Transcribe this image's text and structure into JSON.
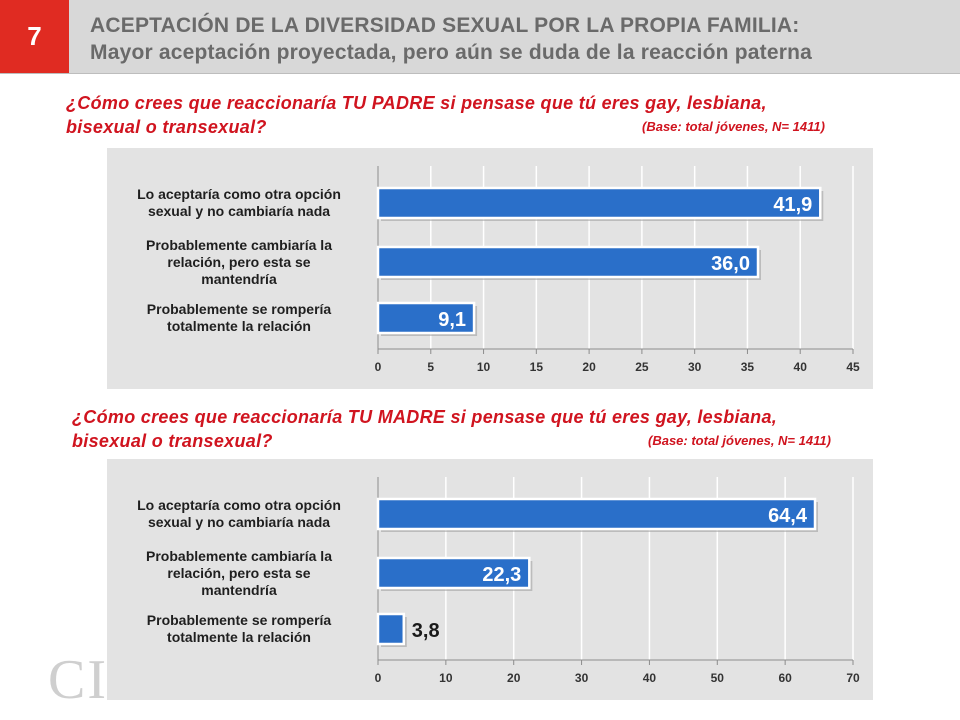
{
  "slide_number": "7",
  "title_line1": "ACEPTACIÓN DE LA DIVERSIDAD SEXUAL POR LA PROPIA FAMILIA:",
  "title_line2": "Mayor aceptación proyectada, pero aún se duda de la reacción paterna",
  "logo_text": "CIM",
  "colors": {
    "accent": "#e02b22",
    "bar": "#2a6fc9",
    "question": "#d0141f",
    "panel": "#e3e3e3"
  },
  "charts": [
    {
      "question_line1": "¿Cómo crees que reaccionaría TU PADRE si pensase que tú eres gay, lesbiana,",
      "question_line2": "bisexual o transexual?",
      "base": "(Base: total jóvenes, N= 1411)"
    },
    {
      "question_line1": "¿Cómo crees que reaccionaría TU MADRE si pensase que tú eres gay, lesbiana,",
      "question_line2": "bisexual o transexual?",
      "base": "(Base: total jóvenes, N= 1411)"
    }
  ],
  "chart_data": [
    {
      "type": "bar",
      "orientation": "horizontal",
      "title": "¿Cómo crees que reaccionaría TU PADRE si pensase que tú eres gay, lesbiana, bisexual o transexual?",
      "categories": [
        "Lo aceptaría como otra opción sexual y no cambiaría nada",
        "Probablemente cambiaría la relación, pero esta se mantendría",
        "Probablemente se rompería totalmente la relación"
      ],
      "category_lines": [
        [
          "Lo aceptaría como otra opción",
          "sexual y no cambiaría nada"
        ],
        [
          "Probablemente cambiaría la",
          "relación, pero esta se",
          "mantendría"
        ],
        [
          "Probablemente se rompería",
          "totalmente la relación"
        ]
      ],
      "values": [
        41.9,
        36.0,
        9.1
      ],
      "value_labels": [
        "41,9",
        "36,0",
        "9,1"
      ],
      "xlim": [
        0,
        45
      ],
      "ticks": [
        0,
        5,
        10,
        15,
        20,
        25,
        30,
        35,
        40,
        45
      ],
      "tick_labels": [
        "0",
        "5",
        "10",
        "15",
        "20",
        "25",
        "30",
        "35",
        "40",
        "45"
      ],
      "grid": true
    },
    {
      "type": "bar",
      "orientation": "horizontal",
      "title": "¿Cómo crees que reaccionaría TU MADRE si pensase que tú eres gay, lesbiana, bisexual o transexual?",
      "categories": [
        "Lo aceptaría como otra opción sexual y no cambiaría nada",
        "Probablemente cambiaría la relación, pero esta se mantendría",
        "Probablemente se rompería totalmente la relación"
      ],
      "category_lines": [
        [
          "Lo aceptaría como otra opción",
          "sexual y no cambiaría nada"
        ],
        [
          "Probablemente cambiaría la",
          "relación, pero esta se",
          "mantendría"
        ],
        [
          "Probablemente se rompería",
          "totalmente la relación"
        ]
      ],
      "values": [
        64.4,
        22.3,
        3.8
      ],
      "value_labels": [
        "64,4",
        "22,3",
        "3,8"
      ],
      "xlim": [
        0,
        70
      ],
      "ticks": [
        0,
        10,
        20,
        30,
        40,
        50,
        60,
        70
      ],
      "tick_labels": [
        "0",
        "10",
        "20",
        "30",
        "40",
        "50",
        "60",
        "70"
      ],
      "grid": true
    }
  ]
}
